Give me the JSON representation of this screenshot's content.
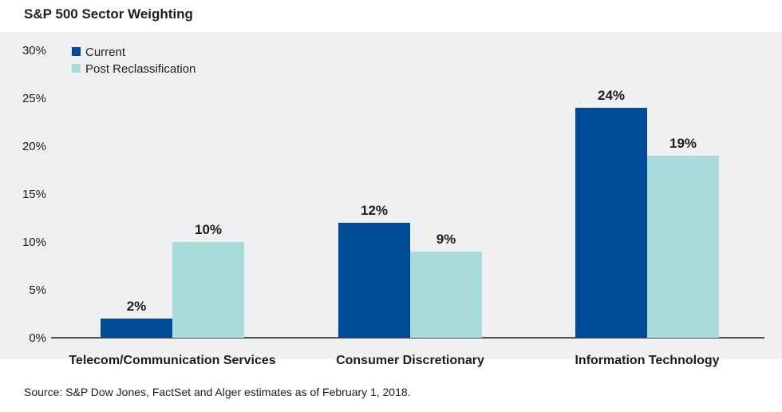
{
  "title": "S&P 500 Sector Weighting",
  "source": "Source: S&P Dow Jones, FactSet and Alger estimates as of February 1, 2018.",
  "chart_data": {
    "type": "bar",
    "title": "S&P 500 Sector Weighting",
    "xlabel": "",
    "ylabel": "",
    "categories": [
      "Telecom/Communication Services",
      "Consumer Discretionary",
      "Information Technology"
    ],
    "series": [
      {
        "name": "Current",
        "values": [
          2,
          12,
          24
        ],
        "labels": [
          "2%",
          "12%",
          "24%"
        ],
        "color": "#004b98"
      },
      {
        "name": "Post Reclassification",
        "values": [
          10,
          9,
          19
        ],
        "labels": [
          "10%",
          "9%",
          "19%"
        ],
        "color": "#a8dbd9"
      }
    ],
    "ylim": [
      0,
      30
    ],
    "yticks": [
      0,
      5,
      10,
      15,
      20,
      25,
      30
    ],
    "ytick_labels": [
      "0%",
      "5%",
      "10%",
      "15%",
      "20%",
      "25%",
      "30%"
    ],
    "grid": false,
    "legend_position": "top-left",
    "background": "#eef0f1"
  }
}
